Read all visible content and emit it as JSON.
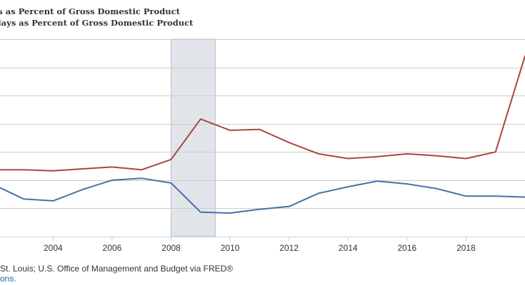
{
  "legend": {
    "series1": "ts as Percent of Gross Domestic Product",
    "series2": "tlays as Percent of Gross Domestic Product"
  },
  "footer": {
    "source": "St. Louis; U.S. Office of Management and Budget via FRED®",
    "link": "ons."
  },
  "colors": {
    "receipts": "#4572a7",
    "outlays": "#aa4643",
    "recession": "#e1e5ea",
    "grid": "#cccccc"
  },
  "chart_data": {
    "type": "line",
    "title": "",
    "xlabel": "",
    "ylabel": "",
    "x_ticks": [
      "2004",
      "2006",
      "2008",
      "2010",
      "2012",
      "2014",
      "2016",
      "2018"
    ],
    "xlim": [
      2002.2,
      2020.0
    ],
    "ylim": [
      12,
      33
    ],
    "grid": true,
    "recession": [
      2008.0,
      2009.5
    ],
    "x": [
      2002,
      2003,
      2004,
      2005,
      2006,
      2007,
      2008,
      2009,
      2010,
      2011,
      2012,
      2013,
      2014,
      2015,
      2016,
      2017,
      2018,
      2019,
      2020
    ],
    "series": [
      {
        "name": "Receipts",
        "color": "#4572a7",
        "values": [
          17.5,
          16.0,
          15.8,
          17.0,
          18.0,
          18.2,
          17.7,
          14.6,
          14.5,
          14.9,
          15.2,
          16.6,
          17.3,
          17.9,
          17.6,
          17.1,
          16.3,
          16.3,
          16.2
        ]
      },
      {
        "name": "Outlays",
        "color": "#aa4643",
        "values": [
          19.1,
          19.1,
          19.0,
          19.2,
          19.4,
          19.1,
          20.2,
          24.5,
          23.3,
          23.4,
          22.0,
          20.8,
          20.3,
          20.5,
          20.8,
          20.6,
          20.3,
          21.0,
          31.2
        ]
      }
    ]
  }
}
